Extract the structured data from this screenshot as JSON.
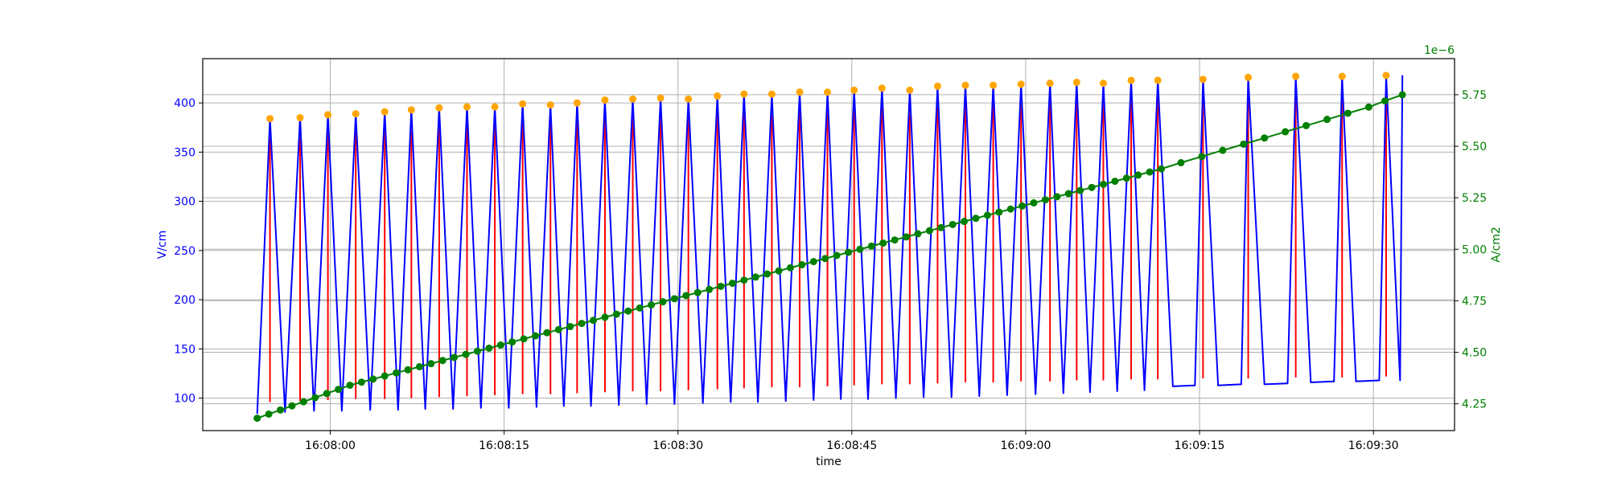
{
  "chart_data": {
    "type": "line",
    "xlabel": "time",
    "x_ticks": [
      "16:08:00",
      "16:08:15",
      "16:08:30",
      "16:08:45",
      "16:09:00",
      "16:09:15",
      "16:09:30"
    ],
    "x_tick_seconds": [
      0,
      15,
      30,
      45,
      60,
      75,
      90
    ],
    "xlim": [
      -11,
      97
    ],
    "left_axis": {
      "label": "V/cm",
      "color": "#0000ff",
      "ylim": [
        67,
        445
      ],
      "ticks": [
        100,
        150,
        200,
        250,
        300,
        350,
        400
      ]
    },
    "right_axis": {
      "label": "A/cm2",
      "color": "#008000",
      "offset_text": "1e−6",
      "ylim": [
        4.12,
        5.925
      ],
      "ticks": [
        4.25,
        4.5,
        4.75,
        5.0,
        5.25,
        5.5,
        5.75
      ],
      "tick_labels": [
        "4.25",
        "4.50",
        "4.75",
        "5.00",
        "5.25",
        "5.50",
        "5.75"
      ]
    },
    "grid": true,
    "colors": {
      "voltage_line": "#0000ff",
      "vertical_marks": "#ff0000",
      "peaks": "#ffa500",
      "current": "#008000"
    },
    "pulse_times": [
      -5.2,
      -2.6,
      -0.2,
      2.2,
      4.7,
      7.0,
      9.4,
      11.8,
      14.2,
      16.6,
      19.0,
      21.3,
      23.7,
      26.1,
      28.5,
      30.9,
      33.4,
      35.7,
      38.1,
      40.5,
      42.9,
      45.2,
      47.6,
      50.0,
      52.4,
      54.8,
      57.2,
      59.6,
      62.1,
      64.4,
      66.7,
      69.1,
      71.4,
      75.3,
      79.2,
      83.3,
      87.3,
      91.1
    ],
    "peak_voltage": [
      384,
      385,
      388,
      389,
      391,
      393,
      395,
      396,
      396,
      399,
      398,
      400,
      403,
      404,
      405,
      404,
      407,
      409,
      409,
      411,
      411,
      413,
      415,
      413,
      417,
      418,
      418,
      419,
      420,
      421,
      420,
      423,
      423,
      424,
      426,
      427,
      427,
      428
    ],
    "trough_voltage": [
      86,
      87,
      87,
      88,
      88,
      89,
      89,
      90,
      90,
      91,
      92,
      92,
      93,
      94,
      94,
      95,
      96,
      96,
      97,
      98,
      99,
      99,
      100,
      101,
      101,
      102,
      103,
      104,
      105,
      106,
      107,
      108,
      112,
      113,
      114,
      115,
      116,
      118
    ],
    "first_point": {
      "t": -6.3,
      "v": 84
    },
    "last_point": {
      "t": 92.5,
      "v": 428
    },
    "flat_gaps": [
      [
        72.7,
        74.6,
        112,
        113
      ],
      [
        76.6,
        78.6,
        113,
        114
      ],
      [
        80.6,
        82.6,
        114,
        115
      ],
      [
        84.6,
        86.6,
        116,
        117
      ],
      [
        88.5,
        90.5,
        117,
        118
      ]
    ],
    "vertical_mark_low": [
      96,
      97,
      98,
      99,
      99,
      100,
      101,
      102,
      103,
      104,
      104,
      105,
      106,
      107,
      107,
      108,
      109,
      110,
      111,
      111,
      112,
      113,
      114,
      114,
      115,
      116,
      116,
      117,
      117,
      118,
      118,
      119,
      119,
      120,
      120,
      121,
      121,
      122
    ],
    "current_series": {
      "name": "A/cm2",
      "t": [
        -6.3,
        -5.3,
        -4.3,
        -3.3,
        -2.3,
        -1.3,
        -0.3,
        0.7,
        1.7,
        2.7,
        3.7,
        4.7,
        5.7,
        6.7,
        7.7,
        8.7,
        9.7,
        10.7,
        11.7,
        12.7,
        13.7,
        14.7,
        15.7,
        16.7,
        17.7,
        18.7,
        19.7,
        20.7,
        21.7,
        22.7,
        23.7,
        24.7,
        25.7,
        26.7,
        27.7,
        28.7,
        29.7,
        30.7,
        31.7,
        32.7,
        33.7,
        34.7,
        35.7,
        36.7,
        37.7,
        38.7,
        39.7,
        40.7,
        41.7,
        42.7,
        43.7,
        44.7,
        45.7,
        46.7,
        47.7,
        48.7,
        49.7,
        50.7,
        51.7,
        52.7,
        53.7,
        54.7,
        55.7,
        56.7,
        57.7,
        58.7,
        59.7,
        60.7,
        61.7,
        62.7,
        63.7,
        64.7,
        65.7,
        66.7,
        67.7,
        68.7,
        69.7,
        70.7,
        71.7,
        73.4,
        75.2,
        77.0,
        78.8,
        80.6,
        82.4,
        84.2,
        86.0,
        87.8,
        89.6,
        91.0,
        92.5
      ],
      "values": [
        4.18,
        4.2,
        4.22,
        4.24,
        4.26,
        4.28,
        4.3,
        4.32,
        4.34,
        4.355,
        4.37,
        4.385,
        4.4,
        4.415,
        4.43,
        4.445,
        4.46,
        4.475,
        4.49,
        4.505,
        4.52,
        4.535,
        4.55,
        4.565,
        4.58,
        4.595,
        4.61,
        4.625,
        4.64,
        4.655,
        4.67,
        4.685,
        4.7,
        4.715,
        4.73,
        4.745,
        4.76,
        4.775,
        4.79,
        4.805,
        4.82,
        4.835,
        4.85,
        4.865,
        4.88,
        4.895,
        4.91,
        4.925,
        4.94,
        4.955,
        4.97,
        4.985,
        5.0,
        5.015,
        5.03,
        5.045,
        5.06,
        5.075,
        5.09,
        5.105,
        5.12,
        5.135,
        5.15,
        5.165,
        5.18,
        5.195,
        5.21,
        5.225,
        5.24,
        5.255,
        5.27,
        5.285,
        5.3,
        5.315,
        5.33,
        5.345,
        5.36,
        5.375,
        5.39,
        5.42,
        5.45,
        5.48,
        5.51,
        5.54,
        5.57,
        5.6,
        5.63,
        5.66,
        5.69,
        5.72,
        5.75
      ]
    }
  }
}
